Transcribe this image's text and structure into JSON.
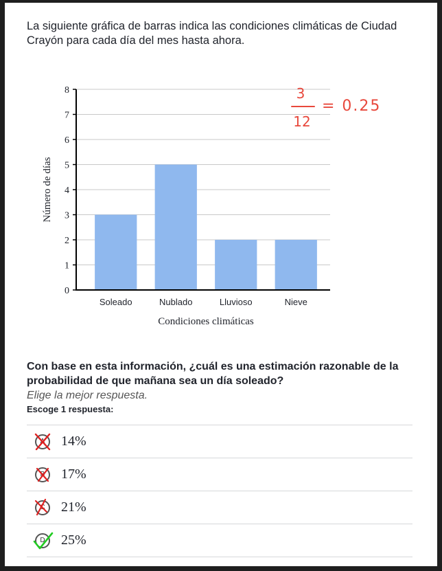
{
  "intro": "La siguiente gráfica de barras indica las condiciones climáticas de Ciudad Crayón para cada día del mes hasta ahora.",
  "annotation": {
    "numerator": "3",
    "denominator": "12",
    "result": "= 0.25",
    "color": "#e8483c"
  },
  "chart_data": {
    "type": "bar",
    "categories": [
      "Soleado",
      "Nublado",
      "Lluvioso",
      "Nieve"
    ],
    "values": [
      3,
      5,
      2,
      2
    ],
    "xlabel": "Condiciones climáticas",
    "ylabel": "Número de días",
    "ylim": [
      0,
      8
    ],
    "yticks": [
      "0",
      "1",
      "2",
      "3",
      "4",
      "5",
      "6",
      "7",
      "8"
    ],
    "bar_color": "#8fb8ee",
    "grid": true
  },
  "question": {
    "text": "Con base en esta información, ¿cuál es una estimación razonable de la probabilidad de que mañana sea un día soleado?",
    "hint": "Elige la mejor respuesta.",
    "instruction": "Escoge 1 respuesta:"
  },
  "choices": [
    {
      "letter": "A",
      "label": "14%",
      "mark": "cross"
    },
    {
      "letter": "B",
      "label": "17%",
      "mark": "cross"
    },
    {
      "letter": "C",
      "label": "21%",
      "mark": "cross"
    },
    {
      "letter": "D",
      "label": "25%",
      "mark": "check"
    }
  ],
  "colors": {
    "cross": "#e02020",
    "check": "#22cc22"
  }
}
